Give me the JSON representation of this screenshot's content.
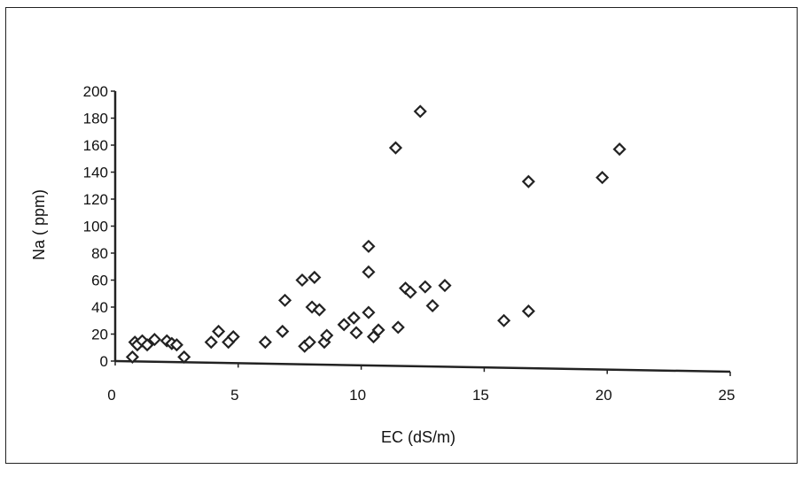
{
  "chart_data": {
    "type": "scatter",
    "title": "",
    "xlabel": "EC (dS/m)",
    "ylabel": "Na ( ppm)",
    "xlim": [
      0,
      25
    ],
    "ylim": [
      0,
      200
    ],
    "xticks": [
      "0",
      "5",
      "10",
      "15",
      "20",
      "25"
    ],
    "yticks": [
      "0",
      "20",
      "40",
      "60",
      "80",
      "100",
      "120",
      "140",
      "160",
      "180",
      "200"
    ],
    "grid": false,
    "legend": "none",
    "marker": "diamond",
    "marker_color": "#222222",
    "points": [
      [
        0.7,
        3
      ],
      [
        0.8,
        14
      ],
      [
        0.9,
        12
      ],
      [
        1.1,
        15
      ],
      [
        1.3,
        12
      ],
      [
        1.6,
        16
      ],
      [
        2.1,
        15
      ],
      [
        2.3,
        13
      ],
      [
        2.5,
        12
      ],
      [
        2.8,
        3
      ],
      [
        3.9,
        14
      ],
      [
        4.2,
        22
      ],
      [
        4.6,
        14
      ],
      [
        4.8,
        18
      ],
      [
        6.1,
        14
      ],
      [
        6.8,
        22
      ],
      [
        6.9,
        45
      ],
      [
        7.6,
        60
      ],
      [
        7.7,
        11
      ],
      [
        7.9,
        14
      ],
      [
        8.0,
        40
      ],
      [
        8.1,
        62
      ],
      [
        8.3,
        38
      ],
      [
        8.5,
        14
      ],
      [
        8.6,
        19
      ],
      [
        9.3,
        27
      ],
      [
        9.7,
        32
      ],
      [
        9.8,
        21
      ],
      [
        10.3,
        85
      ],
      [
        10.3,
        66
      ],
      [
        10.3,
        36
      ],
      [
        10.5,
        18
      ],
      [
        10.7,
        23
      ],
      [
        11.4,
        158
      ],
      [
        11.5,
        25
      ],
      [
        11.8,
        54
      ],
      [
        12.0,
        51
      ],
      [
        12.4,
        185
      ],
      [
        12.6,
        55
      ],
      [
        12.9,
        41
      ],
      [
        13.4,
        56
      ],
      [
        15.8,
        30
      ],
      [
        16.8,
        133
      ],
      [
        16.8,
        37
      ],
      [
        19.8,
        136
      ],
      [
        20.5,
        157
      ]
    ]
  }
}
